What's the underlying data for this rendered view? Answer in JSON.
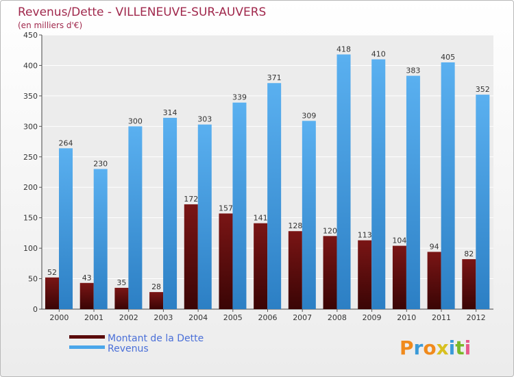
{
  "chart_data": {
    "type": "bar",
    "title": "Revenus/Dette - VILLENEUVE-SUR-AUVERS",
    "subtitle": "(en milliers d'€)",
    "categories": [
      "2000",
      "2001",
      "2002",
      "2003",
      "2004",
      "2005",
      "2006",
      "2007",
      "2008",
      "2009",
      "2010",
      "2011",
      "2012"
    ],
    "series": [
      {
        "name": "Montant de la Dette",
        "color": "#7a1515",
        "values": [
          52,
          43,
          35,
          28,
          172,
          157,
          141,
          128,
          120,
          113,
          104,
          94,
          82
        ]
      },
      {
        "name": "Revenus",
        "color": "#4aa6ea",
        "values": [
          264,
          230,
          300,
          314,
          303,
          339,
          371,
          309,
          418,
          410,
          383,
          405,
          352
        ]
      }
    ],
    "ylim": [
      0,
      450
    ],
    "yticks": [
      0,
      50,
      100,
      150,
      200,
      250,
      300,
      350,
      400,
      450
    ],
    "grid": true,
    "legend": "bottom-left"
  },
  "logo": {
    "letters": [
      "P",
      "r",
      "o",
      "x",
      "i",
      "t",
      "i"
    ],
    "colors": [
      "#f08a1c",
      "#3a9ad8",
      "#f08a1c",
      "#d8c020",
      "#3a9ad8",
      "#7ab828",
      "#e85a8a"
    ]
  }
}
